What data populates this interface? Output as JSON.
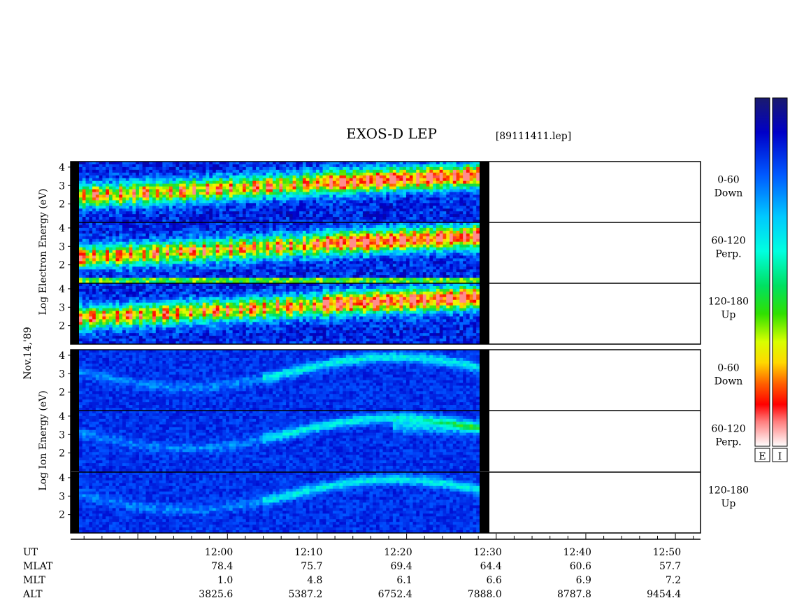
{
  "title": "EXOS-D LEP",
  "file_label": "[89111411.lep]",
  "date_label": "Nov.14,'89",
  "electron_ylabel": [
    "Log",
    "Electron",
    "Energy",
    "(eV)"
  ],
  "ion_ylabel": [
    "Log",
    "Ion",
    "Energy",
    "(eV)"
  ],
  "colorbar_labels": [
    "E",
    "I"
  ],
  "pitch_labels": [
    [
      "0-60",
      "Down"
    ],
    [
      "60-120",
      "Perp."
    ],
    [
      "120-180",
      "Up"
    ],
    [
      "0-60",
      "Down"
    ],
    [
      "60-120",
      "Perp."
    ],
    [
      "120-180",
      "Up"
    ]
  ],
  "row_labels": [
    "UT",
    "MLAT",
    "MLT",
    "ALT"
  ],
  "chart_data": {
    "type": "heatmap",
    "title": "EXOS-D LEP",
    "ylim": [
      1,
      4.3
    ],
    "yticks": [
      2,
      3,
      4
    ],
    "ut_ticks": [
      "12:00",
      "12:10",
      "12:20",
      "12:30",
      "12:40",
      "12:50"
    ],
    "columns": [
      {
        "ut": "12:00",
        "mlat": "78.4",
        "mlt": "1.0",
        "alt": "3825.6"
      },
      {
        "ut": "12:10",
        "mlat": "75.7",
        "mlt": "4.8",
        "alt": "5387.2"
      },
      {
        "ut": "12:20",
        "mlat": "69.4",
        "mlt": "6.1",
        "alt": "6752.4"
      },
      {
        "ut": "12:30",
        "mlat": "64.4",
        "mlt": "6.6",
        "alt": "7888.0"
      },
      {
        "ut": "12:40",
        "mlat": "60.6",
        "mlt": "6.9",
        "alt": "8787.8"
      },
      {
        "ut": "12:50",
        "mlat": "57.7",
        "mlt": "7.2",
        "alt": "9454.4"
      }
    ],
    "x_range_minutes_after_1150": [
      -7.5,
      62.8
    ],
    "data_end_minutes_after_1150": [
      -7,
      31
    ]
  }
}
